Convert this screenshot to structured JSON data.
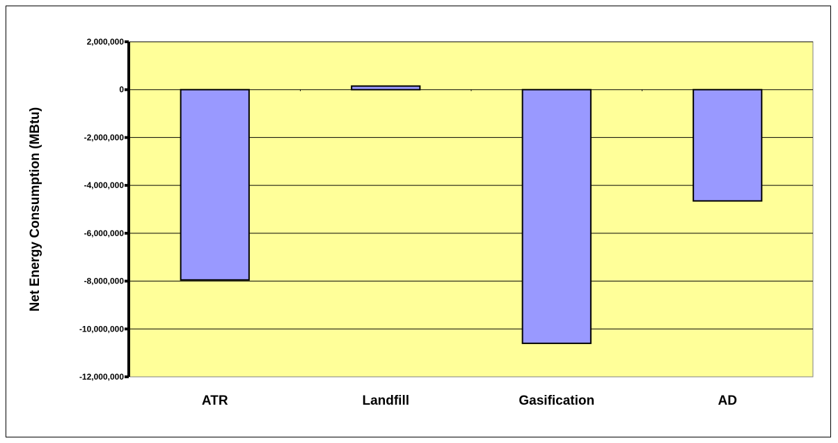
{
  "chart_data": {
    "type": "bar",
    "title": "",
    "xlabel": "",
    "ylabel": "Net Energy Consumption (MBtu)",
    "categories": [
      "ATR",
      "Landfill",
      "Gasification",
      "AD"
    ],
    "values": [
      -7950000,
      150000,
      -10600000,
      -4650000
    ],
    "ylim": [
      -12000000,
      2000000
    ],
    "yticks": [
      2000000,
      0,
      -2000000,
      -4000000,
      -6000000,
      -8000000,
      -10000000,
      -12000000
    ],
    "ytick_labels": [
      "2,000,000",
      "0",
      "-2,000,000",
      "-4,000,000",
      "-6,000,000",
      "-8,000,000",
      "-10,000,000",
      "-12,000,000"
    ],
    "grid": true,
    "legend": "none",
    "colors": {
      "bar_fill": "#9999ff",
      "plot_background": "#ffff99",
      "gridline": "#000000",
      "axis": "#000000"
    }
  }
}
